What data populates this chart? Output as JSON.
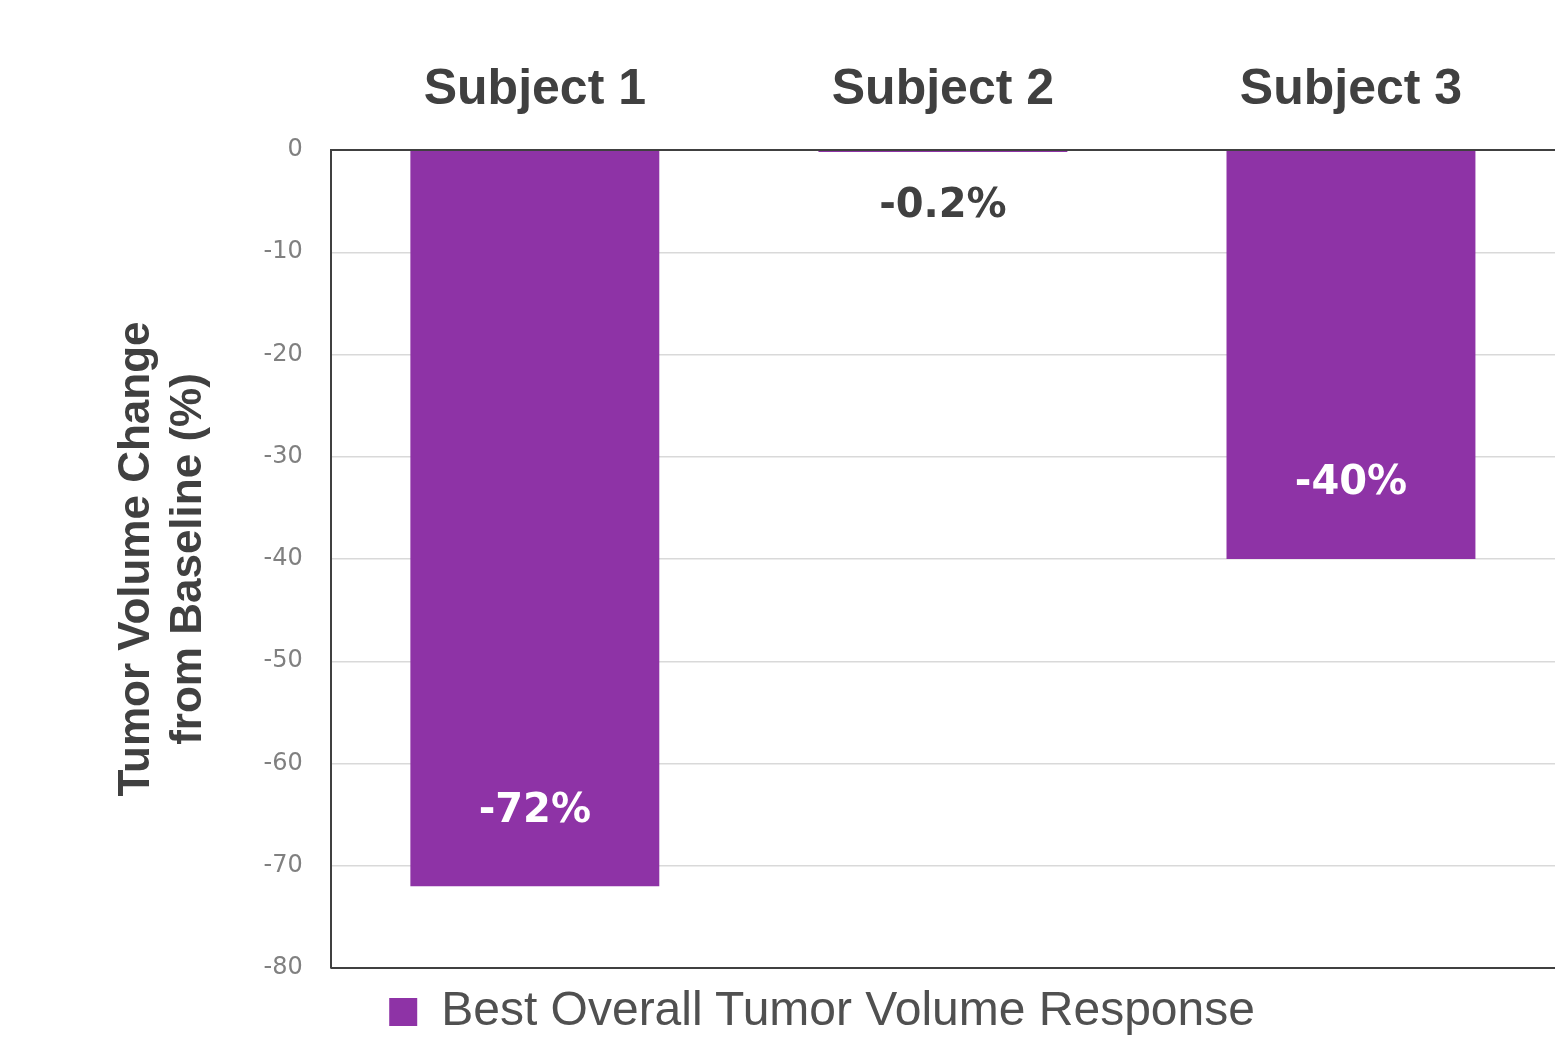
{
  "chart_data": {
    "type": "bar",
    "ylabel": "Tumor Volume Change\nfrom Baseline (%)",
    "categories": [
      "Subject 1",
      "Subject 2",
      "Subject 3"
    ],
    "series": [
      {
        "name": "Best Overall Tumor Volume Response",
        "color": "#8e33a6",
        "values": [
          -72,
          -0.2,
          -40
        ],
        "value_labels": [
          "-72%",
          "-0.2%",
          "-40%"
        ]
      }
    ],
    "ylim": [
      -80,
      0
    ],
    "yticks": [
      -80,
      -70,
      -60,
      -50,
      -40,
      -30,
      -20,
      -10,
      0
    ],
    "grid": "y",
    "legend": "bottom"
  }
}
